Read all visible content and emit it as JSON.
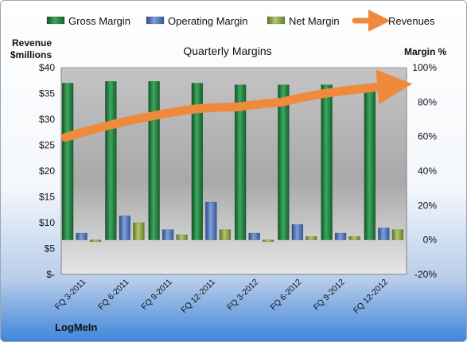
{
  "chart_data": {
    "type": "bar",
    "title": "Quarterly Margins",
    "left_axis_title_line1": "Revenue",
    "left_axis_title_line2": "$millions",
    "right_axis_title": "Margin %",
    "company": "LogMeIn",
    "categories": [
      "FQ 3-2011",
      "FQ 6-2011",
      "FQ 9-2011",
      "FQ 12-2011",
      "FQ 3-2012",
      "FQ 6-2012",
      "FQ 9-2012",
      "FQ 12-2012"
    ],
    "left_ticks": [
      "$-",
      "$5",
      "$10",
      "$15",
      "$20",
      "$25",
      "$30",
      "$35",
      "$40"
    ],
    "right_ticks": [
      "-20%",
      "0%",
      "20%",
      "40%",
      "60%",
      "80%",
      "100%"
    ],
    "left_ylim": [
      0,
      40
    ],
    "right_ylim": [
      -20,
      100
    ],
    "series": [
      {
        "name": "Gross Margin",
        "axis": "right",
        "kind": "bar",
        "color": "#1f7a3a",
        "values": [
          91,
          92,
          92,
          91,
          90,
          90,
          90,
          90
        ]
      },
      {
        "name": "Operating Margin",
        "axis": "right",
        "kind": "bar",
        "color": "#4a6fb5",
        "values": [
          4,
          14,
          6,
          22,
          4,
          9,
          4,
          7
        ]
      },
      {
        "name": "Net Margin",
        "axis": "right",
        "kind": "bar",
        "color": "#7f9a3c",
        "values": [
          -1,
          10,
          3,
          6,
          -1,
          2,
          2,
          6
        ]
      },
      {
        "name": "Revenues",
        "axis": "left",
        "kind": "line",
        "color": "#ef8a3c",
        "values": [
          26.5,
          28.8,
          30.6,
          32.0,
          32.4,
          33.3,
          35.0,
          36.5
        ]
      }
    ],
    "grid": false,
    "legend_position": "top"
  }
}
